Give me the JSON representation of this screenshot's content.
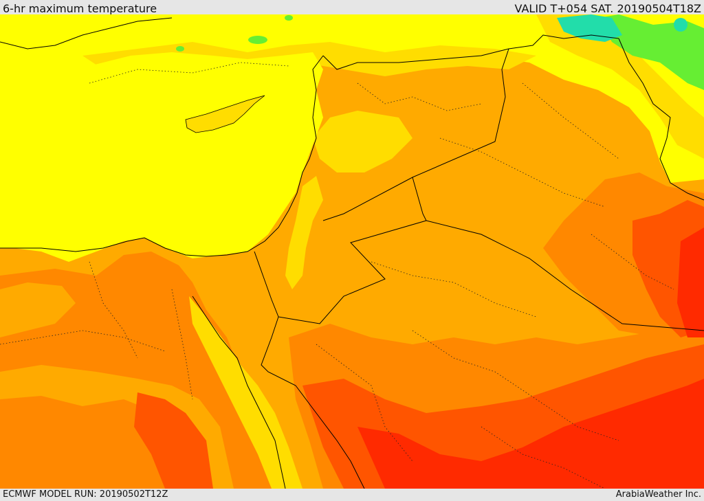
{
  "header": {
    "title": "6-hr maximum temperature",
    "valid": "VALID T+054 SAT. 20190504T18Z"
  },
  "footer": {
    "model_run": "ECMWF MODEL RUN: 20190502T12Z",
    "credit": "ArabiaWeather Inc."
  },
  "colors": {
    "sea_yellow": "#ffff00",
    "light_orange": "#ffdd00",
    "orange": "#ffaa00",
    "dark_orange": "#ff8800",
    "red_orange": "#ff5500",
    "red": "#ff2a00",
    "green": "#66ee33",
    "teal": "#22ddaa",
    "border": "#000000"
  }
}
